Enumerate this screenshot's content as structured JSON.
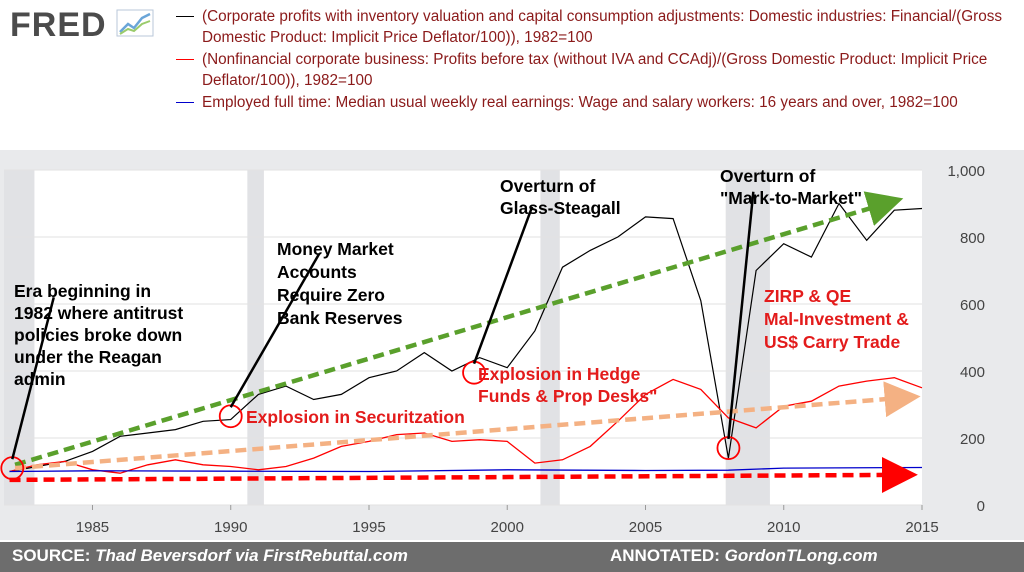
{
  "logo": {
    "text": "FRED",
    "icon": "chart-line-icon"
  },
  "legend": [
    {
      "color": "#000000",
      "label": "(Corporate profits with inventory valuation and capital consumption adjustments: Domestic industries: Financial/(Gross Domestic Product: Implicit Price Deflator/100)), 1982=100"
    },
    {
      "color": "#ff0000",
      "label": "(Nonfinancial corporate business: Profits before tax (without IVA and CCAdj)/(Gross Domestic Product: Implicit Price Deflator/100)), 1982=100"
    },
    {
      "color": "#0000cc",
      "label": "Employed full time: Median usual weekly real earnings: Wage and salary workers: 16 years and over, 1982=100"
    }
  ],
  "footer": {
    "source_label": "SOURCE:",
    "source_text": "Thad Beversdorf via FirstRebuttal.com",
    "annotated_label": "ANNOTATED:",
    "annotated_text": "GordonTLong.com"
  },
  "chart_data": {
    "type": "line",
    "xlim": [
      1981.8,
      2015.0
    ],
    "ylim": [
      0,
      1000
    ],
    "x_ticks": [
      1985,
      1990,
      1995,
      2000,
      2005,
      2010,
      2015
    ],
    "x_tick_labels": [
      "1985",
      "1990",
      "1995",
      "2000",
      "2005",
      "2010",
      "2015"
    ],
    "y_ticks": [
      0,
      200,
      400,
      600,
      800,
      1000
    ],
    "y_tick_labels": [
      "0",
      "200",
      "400",
      "600",
      "800",
      "1,000"
    ],
    "recessions": [
      [
        1981.8,
        1982.9
      ],
      [
        1990.6,
        1991.2
      ],
      [
        2001.2,
        2001.9
      ],
      [
        2007.9,
        2009.5
      ]
    ],
    "series": [
      {
        "color": "#000000",
        "x": [
          1982,
          1983,
          1984,
          1985,
          1986,
          1987,
          1988,
          1989,
          1990,
          1991,
          1992,
          1993,
          1994,
          1995,
          1996,
          1997,
          1998,
          1999,
          2000,
          2001,
          2002,
          2003,
          2004,
          2005,
          2006,
          2007,
          2008,
          2009,
          2010,
          2011,
          2012,
          2013,
          2014,
          2015
        ],
        "values": [
          100,
          115,
          130,
          160,
          205,
          215,
          225,
          250,
          255,
          330,
          355,
          315,
          330,
          380,
          400,
          455,
          400,
          440,
          410,
          520,
          710,
          760,
          800,
          860,
          855,
          610,
          140,
          700,
          780,
          740,
          900,
          790,
          880,
          885
        ]
      },
      {
        "color": "#ff0000",
        "x": [
          1982,
          1983,
          1984,
          1985,
          1986,
          1987,
          1988,
          1989,
          1990,
          1991,
          1992,
          1993,
          1994,
          1995,
          1996,
          1997,
          1998,
          1999,
          2000,
          2001,
          2002,
          2003,
          2004,
          2005,
          2006,
          2007,
          2008,
          2009,
          2010,
          2011,
          2012,
          2013,
          2014,
          2015
        ],
        "values": [
          100,
          120,
          130,
          105,
          95,
          120,
          135,
          120,
          115,
          105,
          115,
          140,
          175,
          190,
          210,
          215,
          190,
          195,
          190,
          125,
          135,
          175,
          250,
          330,
          375,
          345,
          260,
          230,
          295,
          310,
          355,
          370,
          380,
          350
        ]
      },
      {
        "color": "#0000cc",
        "x": [
          1982,
          1985,
          1990,
          1995,
          2000,
          2005,
          2008,
          2010,
          2015
        ],
        "values": [
          100,
          102,
          101,
          100,
          105,
          103,
          104,
          110,
          112
        ]
      }
    ],
    "trend_arrows": [
      {
        "color": "#5aa02c",
        "x": [
          1982.2,
          2013.7
        ],
        "values": [
          120,
          900
        ]
      },
      {
        "color": "#f4b183",
        "x": [
          1982.2,
          2014.3
        ],
        "values": [
          110,
          320
        ]
      },
      {
        "color": "#ff0000",
        "x": [
          1982.0,
          2014.2
        ],
        "values": [
          75,
          90
        ]
      }
    ],
    "circles": [
      {
        "x": 1982.1,
        "value": 110
      },
      {
        "x": 1990.0,
        "value": 265
      },
      {
        "x": 1998.8,
        "value": 395
      },
      {
        "x": 2008.0,
        "value": 170
      }
    ],
    "annotations": [
      {
        "lines": [
          "Era beginning in",
          "1982 where antitrust",
          "policies broke down",
          "under the Reagan",
          "admin"
        ],
        "color": "#000000",
        "anchor_x": 1982.1,
        "anchor_value": 110,
        "label_x": 1983.6,
        "label_value": 620
      },
      {
        "lines": [
          "Money Market",
          "Accounts",
          "Require Zero",
          "Bank Reserves"
        ],
        "color": "#000000",
        "anchor_x": 1990.0,
        "anchor_value": 265,
        "label_x": 1993.2,
        "label_value": 750
      },
      {
        "lines": [
          "Overturn of",
          "Glass-Steagall"
        ],
        "color": "#000000",
        "anchor_x": 1998.8,
        "anchor_value": 395,
        "label_x": 2000.9,
        "label_value": 890
      },
      {
        "lines": [
          "Overturn of",
          "\"Mark-to-Market\""
        ],
        "color": "#000000",
        "anchor_x": 2008.0,
        "anchor_value": 170,
        "label_x": 2008.9,
        "label_value": 935
      },
      {
        "lines": [
          "Explosion in Securitzation"
        ],
        "color": "#e31b1b"
      },
      {
        "lines": [
          "Explosion in Hedge",
          "Funds & Prop Desks\""
        ],
        "color": "#e31b1b"
      },
      {
        "lines": [
          "ZIRP & QE",
          "Mal-Investment &",
          "US$ Carry Trade"
        ],
        "color": "#e31b1b"
      }
    ]
  }
}
